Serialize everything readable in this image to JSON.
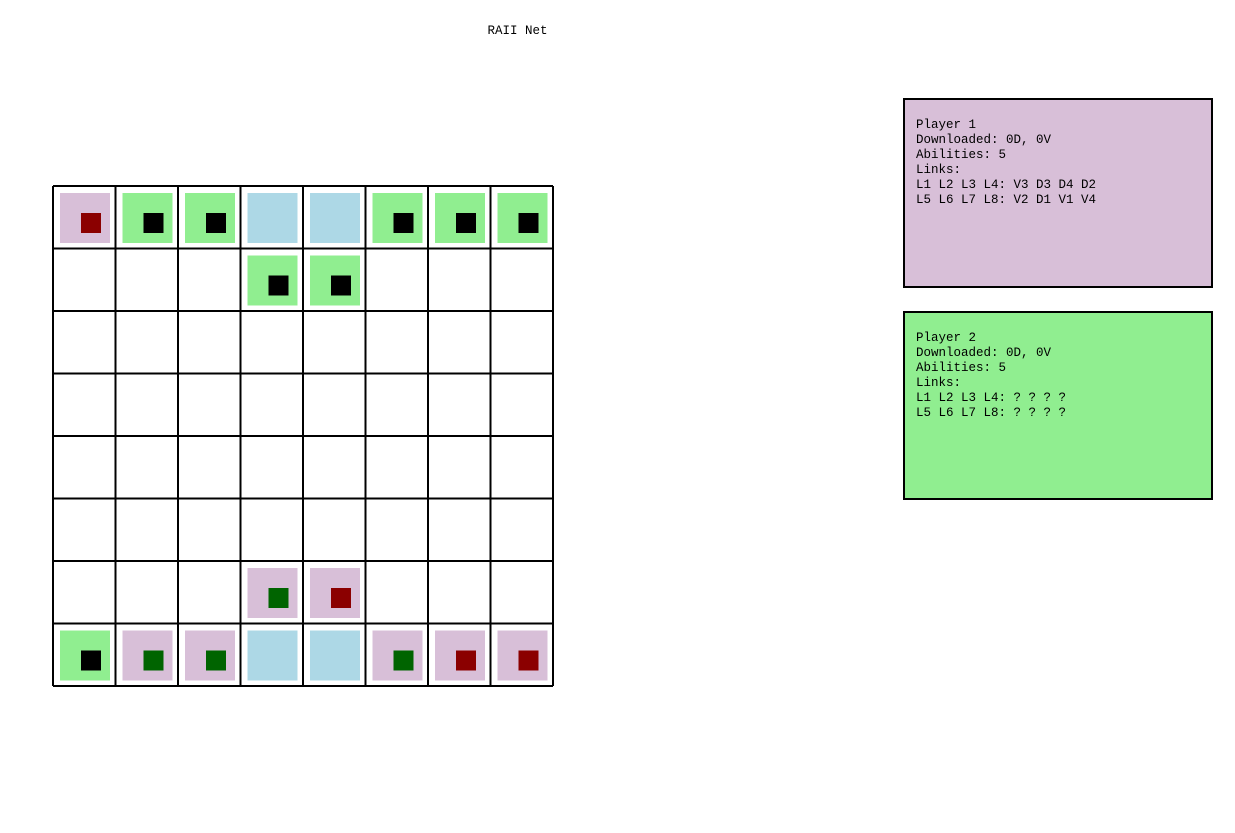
{
  "title": "RAII Net",
  "players": [
    {
      "lines": [
        "Player 1",
        "Downloaded: 0D, 0V",
        "Abilities: 5",
        "Links:",
        "L1 L2 L3 L4: V3 D3 D4 D2",
        "L5 L6 L7 L8: V2 D1 V1 V4"
      ]
    },
    {
      "lines": [
        "Player 2",
        "Downloaded: 0D, 0V",
        "Abilities: 5",
        "Links:",
        "L1 L2 L3 L4: ? ? ? ?",
        "L5 L6 L7 L8: ? ? ? ?"
      ]
    }
  ]
}
